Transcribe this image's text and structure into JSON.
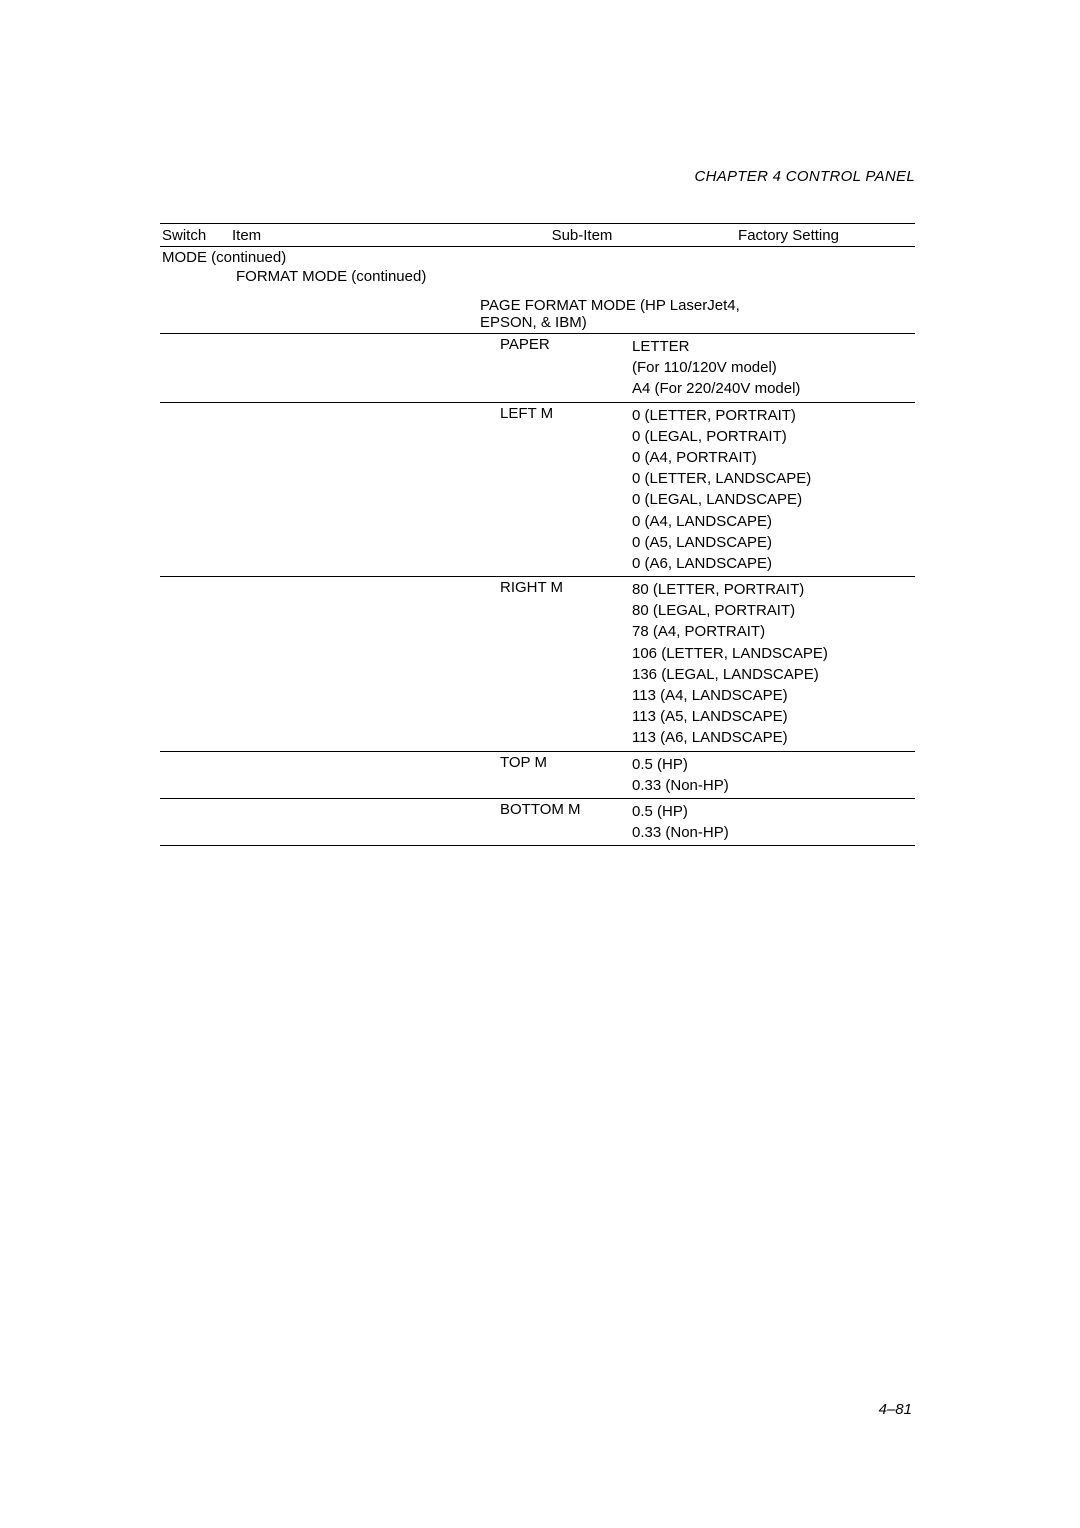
{
  "chapter_header": "CHAPTER 4 CONTROL PANEL",
  "headers": {
    "switch": "Switch",
    "item": "Item",
    "sub_item": "Sub-Item",
    "factory": "Factory Setting"
  },
  "mode_continued": "MODE (continued)",
  "format_continued": "FORMAT MODE (continued)",
  "section_title_l1": "PAGE FORMAT MODE (HP LaserJet4,",
  "section_title_l2": "EPSON, & IBM)",
  "groups": [
    {
      "sub": "PAPER",
      "values": [
        "LETTER",
        "(For 110/120V model)",
        "A4 (For 220/240V model)"
      ]
    },
    {
      "sub": "LEFT M",
      "values": [
        "0 (LETTER, PORTRAIT)",
        "0 (LEGAL, PORTRAIT)",
        "0 (A4, PORTRAIT)",
        "0 (LETTER, LANDSCAPE)",
        "0 (LEGAL, LANDSCAPE)",
        "0 (A4, LANDSCAPE)",
        "0 (A5, LANDSCAPE)",
        "0 (A6, LANDSCAPE)"
      ]
    },
    {
      "sub": "RIGHT M",
      "values": [
        "80 (LETTER, PORTRAIT)",
        "80 (LEGAL, PORTRAIT)",
        "78 (A4, PORTRAIT)",
        "106 (LETTER, LANDSCAPE)",
        "136 (LEGAL, LANDSCAPE)",
        "113 (A4, LANDSCAPE)",
        "113 (A5, LANDSCAPE)",
        "113 (A6, LANDSCAPE)"
      ]
    },
    {
      "sub": "TOP M",
      "values": [
        " 0.5  (HP)",
        " 0.33  (Non-HP)"
      ]
    },
    {
      "sub": "BOTTOM M",
      "values": [
        " 0.5  (HP)",
        " 0.33  (Non-HP)"
      ]
    }
  ],
  "page_number": "4–81",
  "style": {
    "background": "#ffffff",
    "text_color": "#000000",
    "rule_color": "#000000",
    "body_fontsize": 15,
    "header_fontsize": 15
  }
}
